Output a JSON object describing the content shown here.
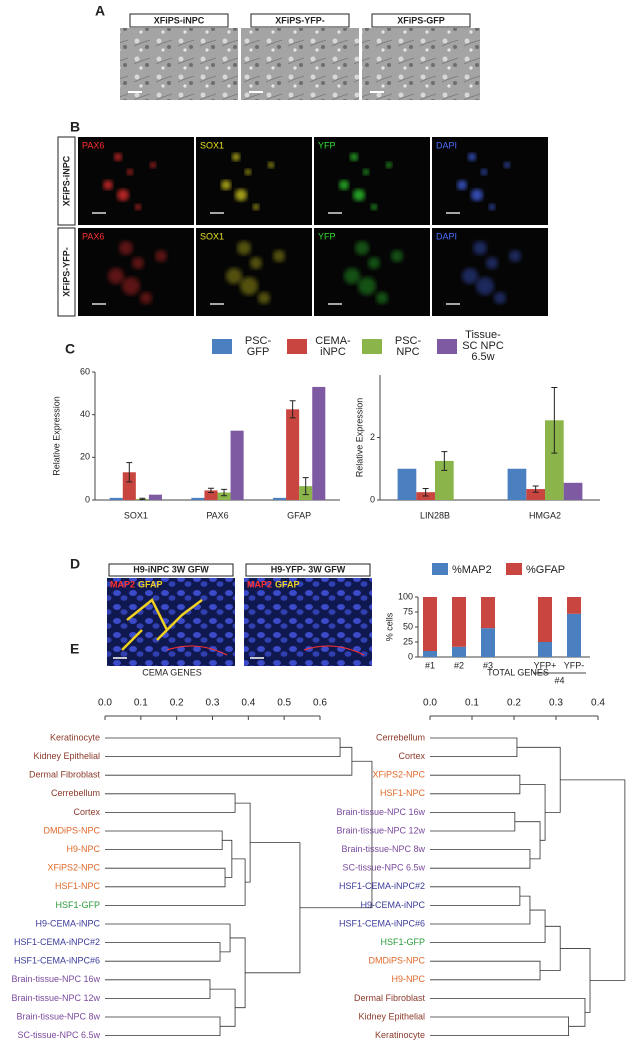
{
  "figure": {
    "panel_labels": [
      "A",
      "B",
      "C",
      "D",
      "E"
    ]
  },
  "panel_a": {
    "images": [
      "XFiPS-iNPC",
      "XFiPS-YFP-",
      "XFiPS-GFP"
    ]
  },
  "panel_b": {
    "rows": [
      "XFiPS-iNPC",
      "XFiPS-YFP-"
    ],
    "channels": [
      {
        "name": "PAX6",
        "color": "#ff3030"
      },
      {
        "name": "SOX1",
        "color": "#e8e020"
      },
      {
        "name": "YFP",
        "color": "#30e030"
      },
      {
        "name": "DAPI",
        "color": "#4a6cff"
      }
    ]
  },
  "panel_d": {
    "images": [
      "H9-iNPC 3W GFW",
      "H9-YFP- 3W GFW"
    ],
    "stains": [
      {
        "name": "MAP2",
        "color": "#ff3030"
      },
      {
        "name": "GFAP",
        "color": "#f0d020"
      }
    ]
  },
  "chart_data": [
    {
      "type": "bar",
      "ylabel": "Relative Expression",
      "categories": [
        "SOX1",
        "PAX6",
        "GFAP"
      ],
      "ylim": [
        0,
        60
      ],
      "yticks": [
        0,
        20,
        40,
        60
      ],
      "series": [
        {
          "name": "PSC-GFP",
          "color": "#4a7fc0",
          "values": [
            1,
            1,
            1
          ],
          "errors": [
            null,
            null,
            null
          ]
        },
        {
          "name": "CEMA-iNPC",
          "color": "#c9453f",
          "values": [
            13,
            4.5,
            42.5
          ],
          "errors": [
            4.5,
            1,
            4
          ]
        },
        {
          "name": "PSC-NPC",
          "color": "#8bb54a",
          "values": [
            0.5,
            3.5,
            6.5
          ],
          "errors": [
            0.3,
            1.5,
            4
          ]
        },
        {
          "name": "Tissue- SC NPC 6.5w",
          "color": "#7e5aa3",
          "values": [
            2.5,
            32.5,
            53
          ],
          "errors": [
            null,
            null,
            null
          ]
        }
      ]
    },
    {
      "type": "bar",
      "ylabel": "Relative Expression",
      "categories": [
        "LIN28B",
        "HMGA2"
      ],
      "ylim": [
        0,
        4
      ],
      "yticks": [
        0,
        2
      ],
      "series": [
        {
          "name": "PSC-GFP",
          "color": "#4a7fc0",
          "values": [
            1,
            1
          ],
          "errors": [
            null,
            null
          ]
        },
        {
          "name": "CEMA-iNPC",
          "color": "#c9453f",
          "values": [
            0.25,
            0.35
          ],
          "errors": [
            0.12,
            0.1
          ]
        },
        {
          "name": "PSC-NPC",
          "color": "#8bb54a",
          "values": [
            1.25,
            2.55
          ],
          "errors": [
            0.3,
            1.05
          ]
        },
        {
          "name": "Tissue- SC NPC 6.5w",
          "color": "#7e5aa3",
          "values": [
            null,
            0.55
          ],
          "errors": [
            null,
            null
          ]
        }
      ]
    },
    {
      "type": "stacked_bar",
      "ylabel": "% cells",
      "categories": [
        "#1",
        "#2",
        "#3",
        "YFP+",
        "YFP-"
      ],
      "group_label": "#4",
      "ylim": [
        0,
        100
      ],
      "yticks": [
        0,
        25,
        50,
        75,
        100
      ],
      "series": [
        {
          "name": "%MAP2",
          "color": "#4a7fc0",
          "values": [
            10,
            17,
            48,
            25,
            72
          ]
        },
        {
          "name": "%GFAP",
          "color": "#c9453f",
          "values": [
            90,
            83,
            52,
            75,
            28
          ]
        }
      ]
    },
    {
      "type": "dendrogram",
      "title": "CEMA GENES",
      "xlim": [
        0,
        0.6
      ],
      "xticks": [
        {
          "value": 0,
          "label": "0.0"
        },
        0.1,
        0.2,
        0.3,
        0.4,
        0.5,
        0.6
      ],
      "tree": {
        "height": 0.745,
        "children": [
          {
            "height": 0.689,
            "children": [
              {
                "height": 0.656,
                "children": [
                  {
                    "label": "Keratinocyte",
                    "color": "#8b3a2a"
                  },
                  {
                    "label": "Kidney Epithelial",
                    "color": "#8b3a2a"
                  }
                ]
              },
              {
                "label": "Dermal Fibroblast",
                "color": "#8b3a2a"
              }
            ]
          },
          {
            "height": 0.544,
            "children": [
              {
                "height": 0.405,
                "children": [
                  {
                    "height": 0.363,
                    "children": [
                      {
                        "label": "Cerrebellum",
                        "color": "#8b3a2a"
                      },
                      {
                        "label": "Cortex",
                        "color": "#8b3a2a"
                      }
                    ]
                  },
                  {
                    "height": 0.391,
                    "children": [
                      {
                        "height": 0.354,
                        "children": [
                          {
                            "height": 0.327,
                            "children": [
                              {
                                "label": "DMDiPS-NPC",
                                "color": "#e06a2c"
                              },
                              {
                                "label": "H9-NPC",
                                "color": "#e06a2c"
                              }
                            ]
                          },
                          {
                            "height": 0.335,
                            "children": [
                              {
                                "label": "XFiPS2-NPC",
                                "color": "#e06a2c"
                              },
                              {
                                "label": "HSF1-NPC",
                                "color": "#e06a2c"
                              }
                            ]
                          }
                        ]
                      },
                      {
                        "label": "HSF1-GFP",
                        "color": "#2a9a3a"
                      }
                    ]
                  }
                ]
              },
              {
                "height": 0.391,
                "children": [
                  {
                    "height": 0.349,
                    "children": [
                      {
                        "label": "H9-CEMA-iNPC",
                        "color": "#3b3b9b"
                      },
                      {
                        "height": 0.321,
                        "children": [
                          {
                            "label": "HSF1-CEMA-iNPC#2",
                            "color": "#3b3b9b"
                          },
                          {
                            "label": "HSF1-CEMA-iNPC#6",
                            "color": "#3b3b9b"
                          }
                        ]
                      }
                    ]
                  },
                  {
                    "height": 0.363,
                    "children": [
                      {
                        "height": 0.293,
                        "children": [
                          {
                            "label": "Brain-tissue-NPC 16w",
                            "color": "#7b4a9e"
                          },
                          {
                            "label": "Brain-tissue-NPC 12w",
                            "color": "#7b4a9e"
                          }
                        ]
                      },
                      {
                        "height": 0.321,
                        "children": [
                          {
                            "label": "Brain-tissue-NPC 8w",
                            "color": "#7b4a9e"
                          },
                          {
                            "label": "SC-tissue-NPC 6.5w",
                            "color": "#7b4a9e"
                          }
                        ]
                      }
                    ]
                  }
                ]
              }
            ]
          }
        ]
      }
    },
    {
      "type": "dendrogram",
      "title": "TOTAL GENES",
      "xlim": [
        0,
        0.4
      ],
      "xticks": [
        {
          "value": 0,
          "label": "0.0"
        },
        0.1,
        0.2,
        0.3,
        0.4
      ],
      "tree": {
        "height": 0.464,
        "children": [
          {
            "height": 0.31,
            "children": [
              {
                "height": 0.207,
                "children": [
                  {
                    "label": "Cerrebellum",
                    "color": "#8b3a2a"
                  },
                  {
                    "label": "Cortex",
                    "color": "#8b3a2a"
                  }
                ]
              },
              {
                "height": 0.274,
                "children": [
                  {
                    "height": 0.214,
                    "children": [
                      {
                        "label": "XFiPS2-NPC",
                        "color": "#e06a2c"
                      },
                      {
                        "label": "HSF1-NPC",
                        "color": "#e06a2c"
                      }
                    ]
                  },
                  {
                    "height": 0.262,
                    "children": [
                      {
                        "height": 0.202,
                        "children": [
                          {
                            "label": "Brain-tissue-NPC 16w",
                            "color": "#7b4a9e"
                          },
                          {
                            "label": "Brain-tissue-NPC 12w",
                            "color": "#7b4a9e"
                          }
                        ]
                      },
                      {
                        "height": 0.238,
                        "children": [
                          {
                            "label": "Brain-tissue-NPC 8w",
                            "color": "#7b4a9e"
                          },
                          {
                            "label": "SC-tissue-NPC 6.5w",
                            "color": "#7b4a9e"
                          }
                        ]
                      }
                    ]
                  }
                ]
              }
            ]
          },
          {
            "height": 0.381,
            "children": [
              {
                "height": 0.31,
                "children": [
                  {
                    "height": 0.274,
                    "children": [
                      {
                        "height": 0.238,
                        "children": [
                          {
                            "height": 0.214,
                            "children": [
                              {
                                "label": "HSF1-CEMA-iNPC#2",
                                "color": "#3b3b9b"
                              },
                              {
                                "label": "H9-CEMA-iNPC",
                                "color": "#3b3b9b"
                              }
                            ]
                          },
                          {
                            "label": "HSF1-CEMA-iNPC#6",
                            "color": "#3b3b9b"
                          }
                        ]
                      },
                      {
                        "label": "HSF1-GFP",
                        "color": "#2a9a3a"
                      }
                    ]
                  },
                  {
                    "height": 0.262,
                    "children": [
                      {
                        "label": "DMDiPS-NPC",
                        "color": "#e06a2c"
                      },
                      {
                        "label": "H9-NPC",
                        "color": "#e06a2c"
                      }
                    ]
                  }
                ]
              },
              {
                "height": 0.369,
                "children": [
                  {
                    "label": "Dermal Fibroblast",
                    "color": "#8b3a2a"
                  },
                  {
                    "height": 0.33,
                    "children": [
                      {
                        "label": "Kidney Epithelial",
                        "color": "#8b3a2a"
                      },
                      {
                        "label": "Keratinocyte",
                        "color": "#8b3a2a"
                      }
                    ]
                  }
                ]
              }
            ]
          }
        ]
      }
    }
  ]
}
